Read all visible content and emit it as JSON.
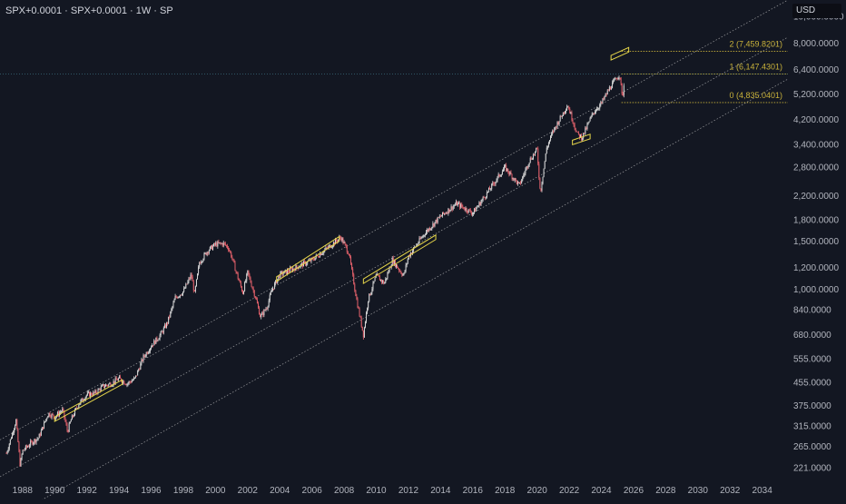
{
  "header": {
    "symbol_line": "SPX+0.0001 · SPX+0.0001 · 1W · SP",
    "currency": "USD"
  },
  "colors": {
    "background": "#131722",
    "axis_text": "#b2b5be",
    "candle_up": "#d8d8d8",
    "candle_down": "#e0606a",
    "channel_line": "#c8c8c8",
    "fib_line": "#c9b23a",
    "highlight_box": "#e6d64a",
    "price_line": "#3b6b7a"
  },
  "chart_data": {
    "type": "candlestick",
    "title": "",
    "xlabel": "",
    "ylabel": "",
    "y_scale": "log",
    "xlim": [
      1986.6,
      2035.6
    ],
    "ylim": [
      205,
      11500
    ],
    "x_ticks": [
      "1988",
      "1990",
      "1992",
      "1994",
      "1996",
      "1998",
      "2000",
      "2002",
      "2004",
      "2006",
      "2008",
      "2010",
      "2012",
      "2014",
      "2016",
      "2018",
      "2020",
      "2022",
      "2024",
      "2026",
      "2028",
      "2030",
      "2032",
      "2034"
    ],
    "y_ticks": [
      {
        "value": 10000,
        "label": "10,000.0000"
      },
      {
        "value": 8000,
        "label": "8,000.0000"
      },
      {
        "value": 6400,
        "label": "6,400.0000"
      },
      {
        "value": 5200,
        "label": "5,200.0000"
      },
      {
        "value": 4200,
        "label": "4,200.0000"
      },
      {
        "value": 3400,
        "label": "3,400.0000"
      },
      {
        "value": 2800,
        "label": "2,800.0000"
      },
      {
        "value": 2200,
        "label": "2,200.0000"
      },
      {
        "value": 1800,
        "label": "1,800.0000"
      },
      {
        "value": 1500,
        "label": "1,500.0000"
      },
      {
        "value": 1200,
        "label": "1,200.0000"
      },
      {
        "value": 1000,
        "label": "1,000.0000"
      },
      {
        "value": 840,
        "label": "840.0000"
      },
      {
        "value": 680,
        "label": "680.0000"
      },
      {
        "value": 555,
        "label": "555.0000"
      },
      {
        "value": 455,
        "label": "455.0000"
      },
      {
        "value": 375,
        "label": "375.0000"
      },
      {
        "value": 315,
        "label": "315.0000"
      },
      {
        "value": 265,
        "label": "265.0000"
      },
      {
        "value": 221,
        "label": "221.0000"
      }
    ],
    "price_series": {
      "name": "SPX",
      "points": [
        [
          1987.0,
          250
        ],
        [
          1987.6,
          330
        ],
        [
          1987.85,
          225
        ],
        [
          1988.0,
          255
        ],
        [
          1988.6,
          275
        ],
        [
          1989.0,
          285
        ],
        [
          1989.6,
          350
        ],
        [
          1990.0,
          340
        ],
        [
          1990.5,
          360
        ],
        [
          1990.8,
          300
        ],
        [
          1991.0,
          330
        ],
        [
          1991.5,
          380
        ],
        [
          1992.0,
          410
        ],
        [
          1992.5,
          415
        ],
        [
          1993.0,
          440
        ],
        [
          1993.5,
          450
        ],
        [
          1994.0,
          470
        ],
        [
          1994.5,
          450
        ],
        [
          1995.0,
          470
        ],
        [
          1995.5,
          560
        ],
        [
          1996.0,
          620
        ],
        [
          1996.5,
          670
        ],
        [
          1997.0,
          750
        ],
        [
          1997.5,
          930
        ],
        [
          1998.0,
          980
        ],
        [
          1998.5,
          1130
        ],
        [
          1998.7,
          960
        ],
        [
          1999.0,
          1250
        ],
        [
          1999.5,
          1380
        ],
        [
          2000.0,
          1460
        ],
        [
          2000.5,
          1470
        ],
        [
          2000.8,
          1420
        ],
        [
          2001.0,
          1320
        ],
        [
          2001.3,
          1150
        ],
        [
          2001.7,
          970
        ],
        [
          2002.0,
          1150
        ],
        [
          2002.5,
          930
        ],
        [
          2002.8,
          790
        ],
        [
          2003.2,
          860
        ],
        [
          2003.5,
          990
        ],
        [
          2004.0,
          1130
        ],
        [
          2005.0,
          1200
        ],
        [
          2006.0,
          1280
        ],
        [
          2007.0,
          1420
        ],
        [
          2007.8,
          1550
        ],
        [
          2008.3,
          1350
        ],
        [
          2008.8,
          900
        ],
        [
          2009.2,
          680
        ],
        [
          2009.5,
          920
        ],
        [
          2010.0,
          1120
        ],
        [
          2010.5,
          1050
        ],
        [
          2011.0,
          1280
        ],
        [
          2011.7,
          1120
        ],
        [
          2012.0,
          1320
        ],
        [
          2013.0,
          1600
        ],
        [
          2014.0,
          1850
        ],
        [
          2015.0,
          2060
        ],
        [
          2016.0,
          1900
        ],
        [
          2017.0,
          2300
        ],
        [
          2018.0,
          2800
        ],
        [
          2018.9,
          2400
        ],
        [
          2019.5,
          2950
        ],
        [
          2020.0,
          3250
        ],
        [
          2020.2,
          2250
        ],
        [
          2020.6,
          3300
        ],
        [
          2021.0,
          3800
        ],
        [
          2021.9,
          4750
        ],
        [
          2022.5,
          3700
        ],
        [
          2022.8,
          3600
        ],
        [
          2023.5,
          4450
        ],
        [
          2024.0,
          4800
        ],
        [
          2024.5,
          5450
        ],
        [
          2025.0,
          6000
        ],
        [
          2025.15,
          6140
        ],
        [
          2025.3,
          5000
        ],
        [
          2025.4,
          5600
        ]
      ]
    },
    "channel_lines": [
      {
        "points": [
          [
            1986.6,
            280
          ],
          [
            2035.6,
            11500
          ]
        ]
      },
      {
        "points": [
          [
            1986.6,
            205
          ],
          [
            2035.6,
            8400
          ]
        ]
      },
      {
        "points": [
          [
            1986.6,
            138
          ],
          [
            2035.6,
            5900
          ]
        ]
      }
    ],
    "highlight_boxes": [
      {
        "x": [
          1990.0,
          1994.2
        ],
        "y": [
          340,
          465
        ]
      },
      {
        "x": [
          2003.8,
          2007.7
        ],
        "y": [
          1110,
          1560
        ]
      },
      {
        "x": [
          2009.2,
          2013.7
        ],
        "y": [
          1090,
          1580
        ]
      },
      {
        "x": [
          2022.2,
          2023.3
        ],
        "y": [
          3520,
          3700
        ]
      },
      {
        "x": [
          2024.6,
          2025.7
        ],
        "y": [
          7200,
          7700
        ]
      }
    ],
    "fib_levels": [
      {
        "label": "2 (7,459.8201)",
        "value": 7459.8201
      },
      {
        "label": "1 (6,147.4301)",
        "value": 6147.4301
      },
      {
        "label": "0 (4,835.0401)",
        "value": 4835.0401
      }
    ],
    "fib_x_start": 2025.25,
    "current_price": 6147.4301
  }
}
